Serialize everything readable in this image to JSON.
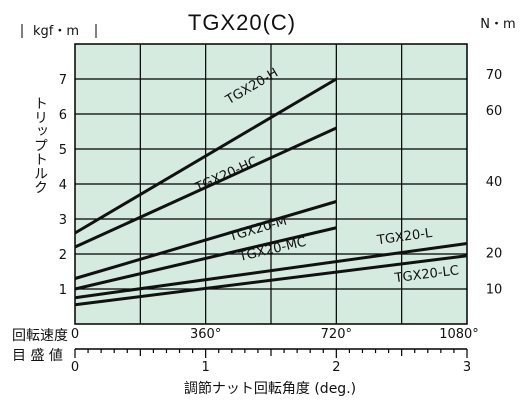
{
  "chart_data": {
    "type": "line",
    "title": "TGX20(C)",
    "y_left_label": "kgf・m",
    "y_right_label": "N・m",
    "y_axis_title": "トリップトルク",
    "x_top_row_label": "回転速度",
    "x_bottom_row_label": "目 盛 値",
    "x_axis_title": "調節ナット回転角度 (deg.)",
    "x_top_ticks": [
      "0",
      "360°",
      "720°",
      "1080°"
    ],
    "x_bottom_ticks": [
      "0",
      "1",
      "2",
      "3"
    ],
    "y_left_ticks": [
      1,
      2,
      3,
      4,
      5,
      6,
      7
    ],
    "y_right_ticks": [
      10,
      20,
      40,
      60,
      70
    ],
    "x_range_deg": [
      0,
      1080
    ],
    "y_range_kgfm": [
      0,
      8
    ],
    "grid": true,
    "background": "#d5ebe0",
    "series": [
      {
        "name": "TGX20-H",
        "x": [
          0,
          720
        ],
        "y": [
          2.6,
          7.0
        ]
      },
      {
        "name": "TGX20-HC",
        "x": [
          0,
          720
        ],
        "y": [
          2.2,
          5.6
        ]
      },
      {
        "name": "TGX20-M",
        "x": [
          0,
          720
        ],
        "y": [
          1.3,
          3.5
        ]
      },
      {
        "name": "TGX20-MC",
        "x": [
          0,
          720
        ],
        "y": [
          1.0,
          2.75
        ]
      },
      {
        "name": "TGX20-L",
        "x": [
          0,
          1080
        ],
        "y": [
          0.75,
          2.3
        ]
      },
      {
        "name": "TGX20-LC",
        "x": [
          0,
          1080
        ],
        "y": [
          0.55,
          1.95
        ]
      }
    ]
  }
}
